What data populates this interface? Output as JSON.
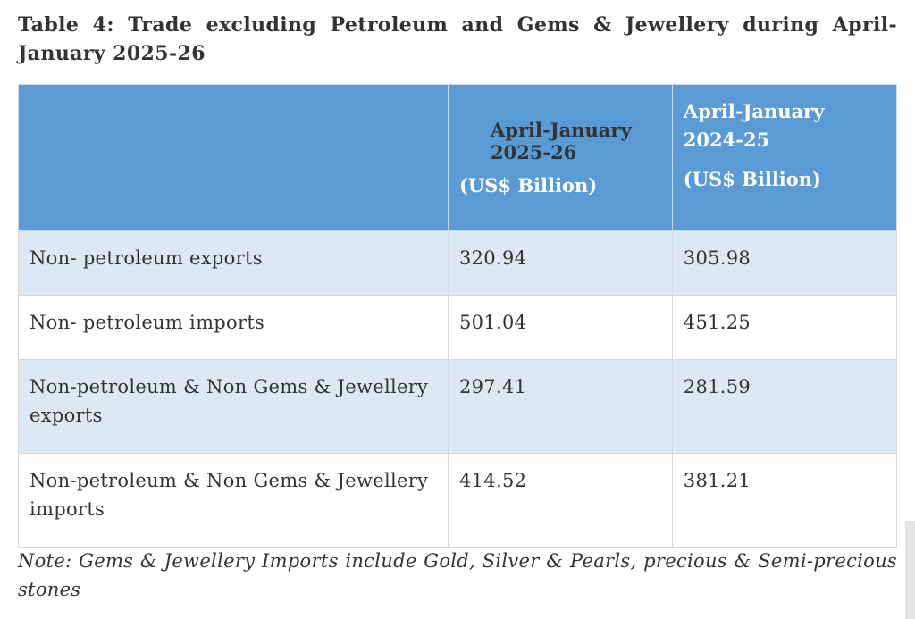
{
  "title": "Table 4: Trade excluding Petroleum and Gems & Jewellery during April-January 2025-26",
  "table": {
    "header": [
      {
        "period": "April-January 2025-26",
        "unit": "(US$ Billion)"
      },
      {
        "period": "April-January 2024-25",
        "unit": "(US$ Billion)"
      }
    ],
    "rows": [
      [
        "Non- petroleum exports",
        "320.94",
        "305.98"
      ],
      [
        "Non- petroleum imports",
        "501.04",
        "451.25"
      ],
      [
        "Non-petroleum & Non Gems & Jewellery exports",
        "297.41",
        "281.59"
      ],
      [
        "Non-petroleum & Non Gems & Jewellery imports",
        "414.52",
        "381.21"
      ]
    ]
  },
  "note": "Note: Gems & Jewellery Imports include Gold, Silver & Pearls, precious & Semi-precious stones"
}
